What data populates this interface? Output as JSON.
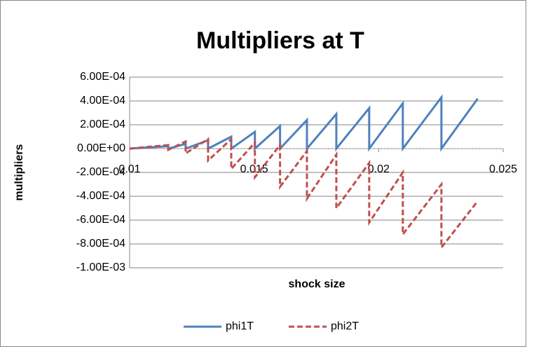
{
  "chart_data": {
    "type": "line",
    "title": "Multipliers at T",
    "x_label": "shock size",
    "y_label": "multipliers",
    "series": [
      {
        "name": "phi1T",
        "color": "#4f81bd",
        "dash": false,
        "x": [
          0.01,
          0.01155,
          0.01155,
          0.01225,
          0.01225,
          0.01315,
          0.01315,
          0.01408,
          0.01408,
          0.01503,
          0.01503,
          0.01604,
          0.01604,
          0.01712,
          0.01712,
          0.0183,
          0.0183,
          0.01962,
          0.01962,
          0.02097,
          0.02097,
          0.02252,
          0.02252,
          0.02398
        ],
        "values": [
          0,
          2e-05,
          0,
          4e-05,
          0,
          7e-05,
          0,
          0.0001,
          0,
          0.00014,
          0,
          0.00019,
          0,
          0.00024,
          0,
          0.00029,
          0,
          0.00034,
          0,
          0.00038,
          0,
          0.00043,
          0,
          0.00042
        ]
      },
      {
        "name": "phi2T",
        "color": "#c0504d",
        "dash": true,
        "x": [
          0.01,
          0.01155,
          0.01155,
          0.01225,
          0.01225,
          0.01315,
          0.01315,
          0.01408,
          0.01408,
          0.01503,
          0.01503,
          0.01604,
          0.01604,
          0.01712,
          0.01712,
          0.0183,
          0.0183,
          0.01962,
          0.01962,
          0.02097,
          0.02097,
          0.02252,
          0.02252,
          0.02398
        ],
        "values": [
          0,
          3e-05,
          -1e-05,
          6e-05,
          -4e-05,
          8e-05,
          -0.0001,
          8e-05,
          -0.00017,
          5e-05,
          -0.00024,
          3e-05,
          -0.00032,
          -2e-05,
          -0.00042,
          -5e-05,
          -0.0005,
          -0.00012,
          -0.00062,
          -0.0002,
          -0.00072,
          -0.0003,
          -0.00083,
          -0.00044
        ]
      }
    ],
    "xlim": [
      0.01,
      0.025
    ],
    "xticks": [
      0.01,
      0.015,
      0.02,
      0.025
    ],
    "ylim": [
      -0.001,
      0.0006
    ],
    "yticks": [
      {
        "value": 0.0006,
        "label": "6.00E-04"
      },
      {
        "value": 0.0004,
        "label": "4.00E-04"
      },
      {
        "value": 0.0002,
        "label": "2.00E-04"
      },
      {
        "value": 0,
        "label": "0.00E+00"
      },
      {
        "value": -0.0002,
        "label": "-2.00E-04"
      },
      {
        "value": -0.0004,
        "label": "-4.00E-04"
      },
      {
        "value": -0.0006,
        "label": "-6.00E-04"
      },
      {
        "value": -0.0008,
        "label": "-8.00E-04"
      },
      {
        "value": -0.001,
        "label": "-1.00E-03"
      }
    ],
    "grid": true,
    "legend": "bottom"
  }
}
